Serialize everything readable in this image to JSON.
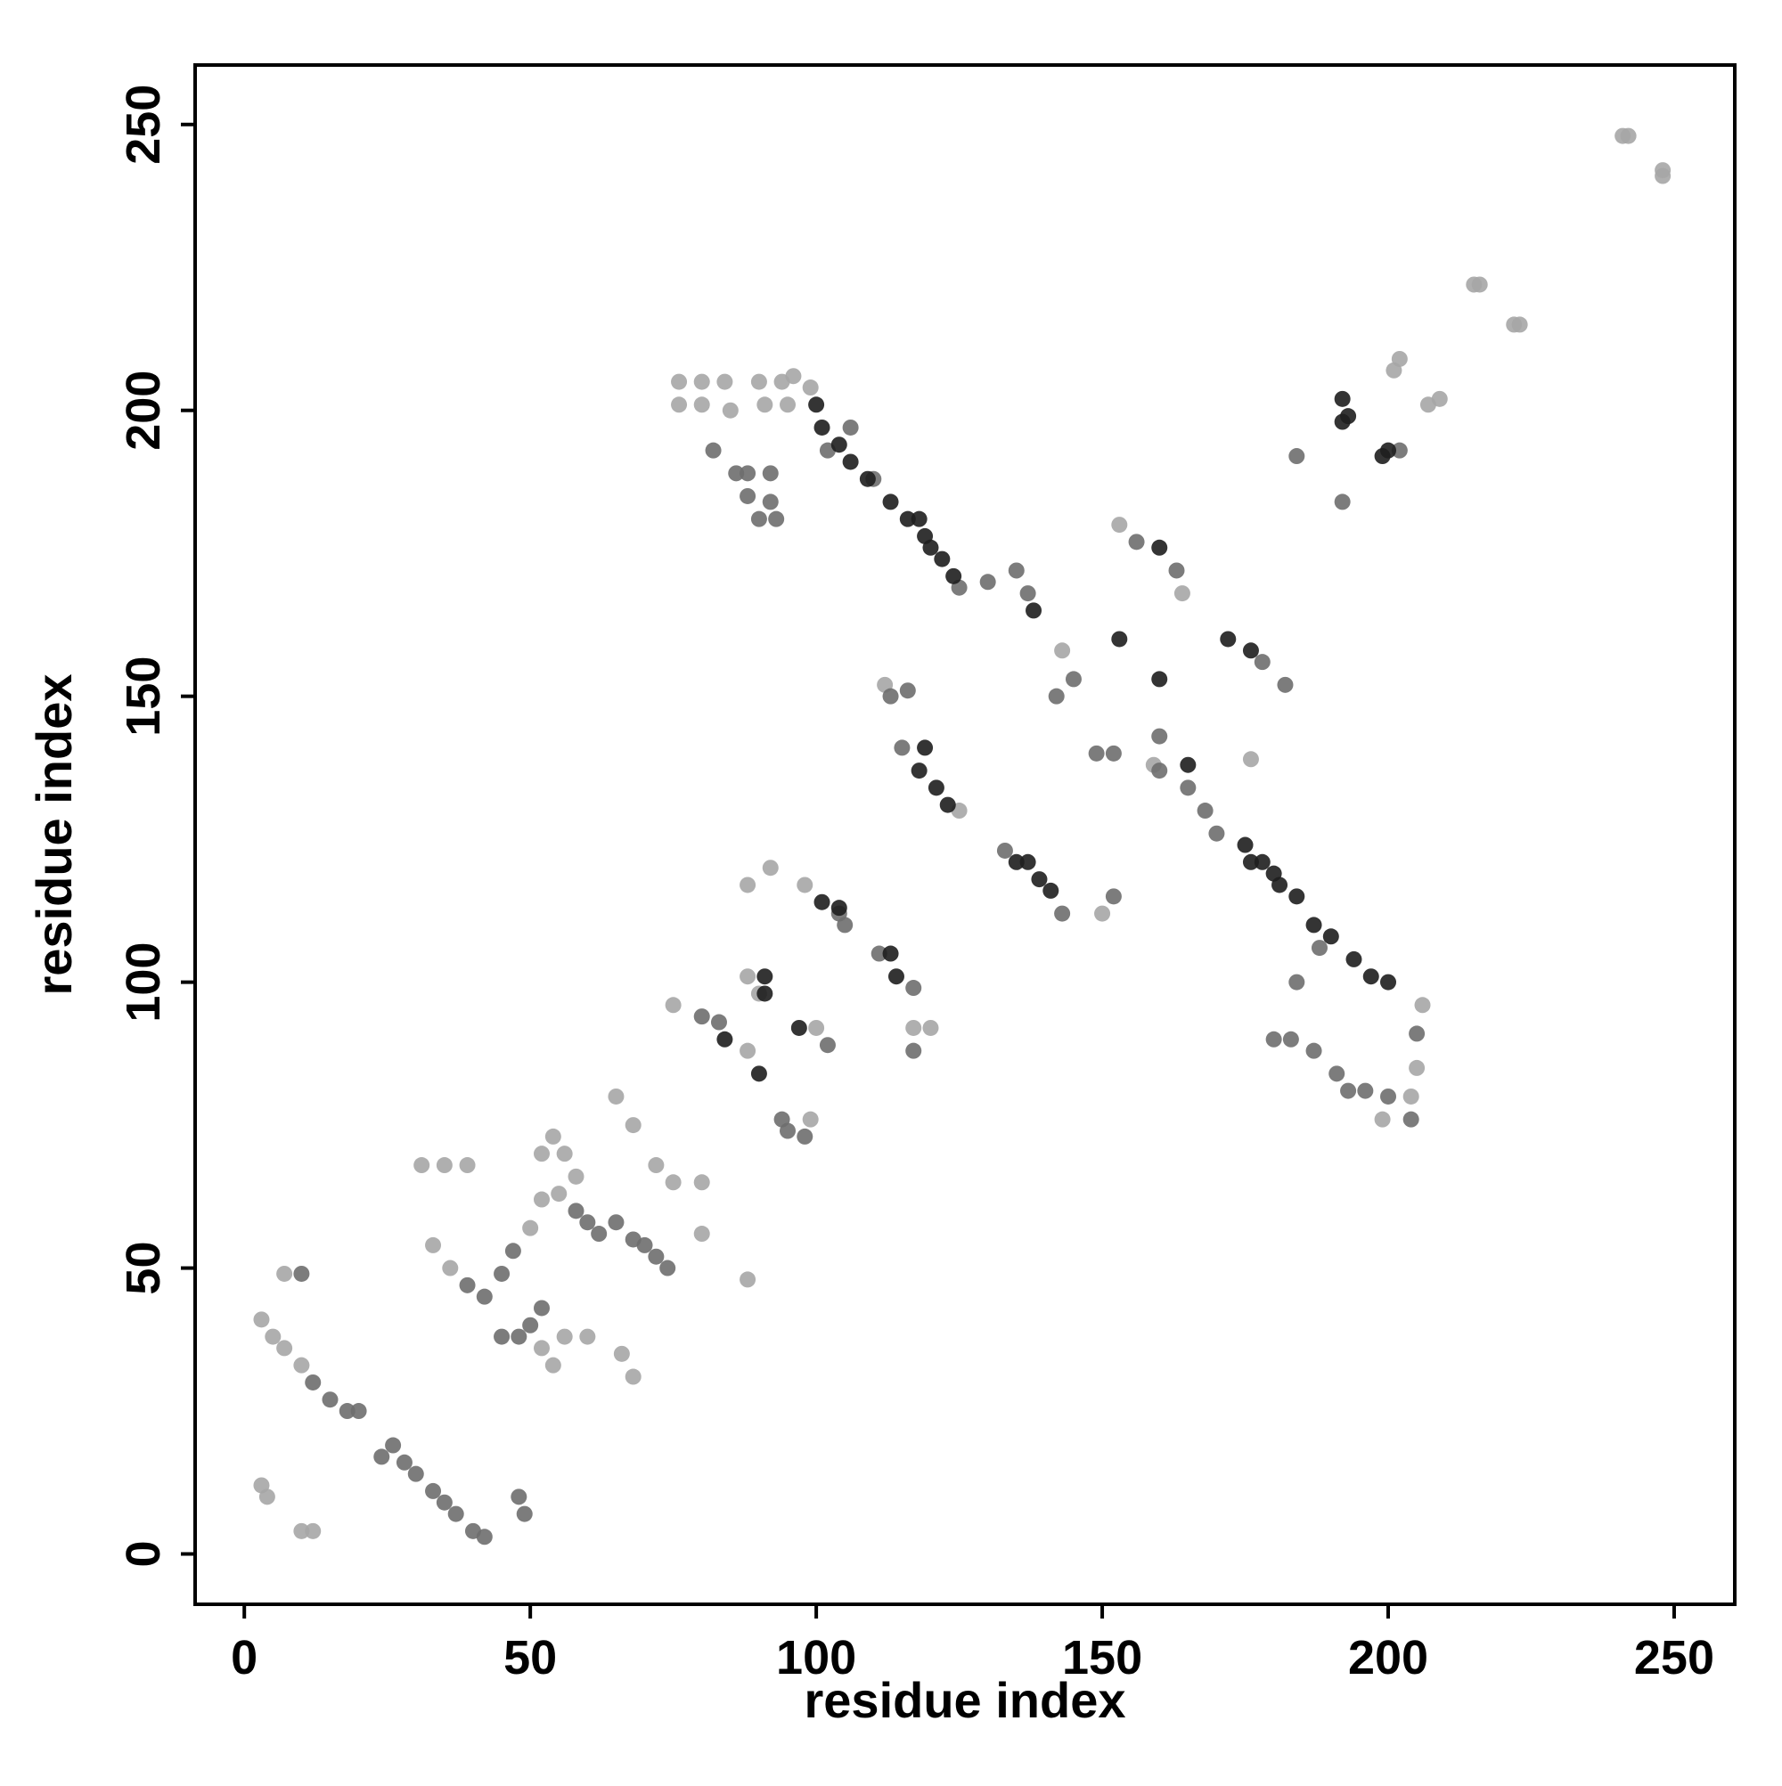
{
  "chart_data": {
    "type": "scatter",
    "xlabel": "residue index",
    "ylabel": "residue index",
    "xlim": [
      -8.6,
      260.6
    ],
    "ylim": [
      -8.8,
      260.4
    ],
    "xticks": [
      0,
      50,
      100,
      150,
      200,
      250
    ],
    "yticks": [
      0,
      50,
      100,
      150,
      200,
      250
    ],
    "series": [
      {
        "color": "#a6a6a6",
        "x": [
          241,
          242,
          248,
          248,
          215,
          216,
          222,
          223,
          201,
          202,
          207,
          209,
          76,
          80,
          84,
          90,
          94,
          96,
          99,
          76,
          80,
          85,
          91,
          95,
          199,
          205,
          206,
          204,
          3,
          5,
          7,
          10,
          7,
          3,
          4,
          10,
          12,
          31,
          35,
          39,
          33,
          36,
          50,
          52,
          52,
          54,
          56,
          55,
          58,
          52,
          54,
          56,
          60,
          66,
          68,
          65,
          68,
          72,
          75,
          80,
          80,
          88,
          88,
          75,
          90,
          88,
          99,
          100,
          88,
          92,
          98,
          117,
          120,
          112,
          125,
          150,
          143,
          153,
          159,
          164,
          176
        ],
        "y": [
          248,
          248,
          241,
          242,
          222,
          222,
          215,
          215,
          207,
          209,
          201,
          202,
          205,
          205,
          205,
          205,
          205,
          206,
          204,
          201,
          201,
          200,
          201,
          201,
          76,
          85,
          96,
          80,
          41,
          38,
          36,
          33,
          49,
          12,
          10,
          4,
          4,
          68,
          68,
          68,
          54,
          50,
          57,
          62,
          70,
          73,
          70,
          63,
          66,
          36,
          33,
          38,
          38,
          35,
          31,
          80,
          75,
          68,
          65,
          65,
          56,
          48,
          88,
          96,
          98,
          101,
          76,
          92,
          117,
          120,
          117,
          92,
          92,
          152,
          130,
          112,
          158,
          180,
          138,
          168,
          139
        ]
      },
      {
        "color": "#6e6e6e",
        "x": [
          184,
          192,
          202,
          82,
          86,
          88,
          90,
          93,
          92,
          88,
          92,
          180,
          183,
          187,
          191,
          193,
          196,
          200,
          204,
          205,
          12,
          15,
          18,
          20,
          10,
          24,
          26,
          28,
          30,
          33,
          35,
          37,
          40,
          42,
          48,
          49,
          39,
          42,
          45,
          47,
          58,
          60,
          62,
          65,
          68,
          70,
          72,
          74,
          52,
          50,
          48,
          45,
          80,
          83,
          94,
          95,
          98,
          102,
          104,
          105,
          111,
          117,
          117,
          113,
          116,
          115,
          133,
          143,
          152,
          135,
          137,
          142,
          145,
          149,
          152,
          160,
          165,
          168,
          170,
          156,
          163,
          182,
          178,
          184,
          188,
          110,
          106,
          102,
          125,
          130,
          160
        ],
        "y": [
          192,
          184,
          193,
          193,
          189,
          185,
          181,
          181,
          184,
          189,
          189,
          90,
          90,
          88,
          84,
          81,
          81,
          80,
          76,
          91,
          30,
          27,
          25,
          25,
          49,
          17,
          19,
          16,
          14,
          11,
          9,
          7,
          4,
          3,
          10,
          7,
          47,
          45,
          49,
          53,
          60,
          58,
          56,
          58,
          55,
          54,
          52,
          50,
          43,
          40,
          38,
          38,
          94,
          93,
          76,
          74,
          73,
          89,
          112,
          110,
          105,
          99,
          88,
          150,
          151,
          141,
          123,
          112,
          115,
          172,
          168,
          150,
          153,
          140,
          140,
          137,
          134,
          130,
          126,
          177,
          172,
          152,
          156,
          100,
          106,
          188,
          197,
          193,
          169,
          170,
          143
        ]
      },
      {
        "color": "#1e1e1e",
        "x": [
          193,
          192,
          192,
          199,
          200,
          100,
          101,
          104,
          106,
          109,
          113,
          116,
          119,
          122,
          124,
          118,
          120,
          175,
          178,
          181,
          184,
          187,
          190,
          194,
          197,
          200,
          176,
          180,
          84,
          90,
          91,
          91,
          97,
          101,
          104,
          113,
          114,
          118,
          121,
          123,
          119,
          135,
          137,
          139,
          141,
          153,
          160,
          160,
          172,
          176,
          138,
          165
        ],
        "y": [
          199,
          198,
          202,
          192,
          193,
          201,
          197,
          194,
          191,
          188,
          184,
          181,
          178,
          174,
          171,
          181,
          176,
          124,
          121,
          117,
          115,
          110,
          108,
          104,
          101,
          100,
          121,
          119,
          90,
          84,
          101,
          98,
          92,
          114,
          113,
          105,
          101,
          137,
          134,
          131,
          141,
          121,
          121,
          118,
          116,
          160,
          153,
          176,
          160,
          158,
          165,
          138
        ]
      }
    ]
  }
}
